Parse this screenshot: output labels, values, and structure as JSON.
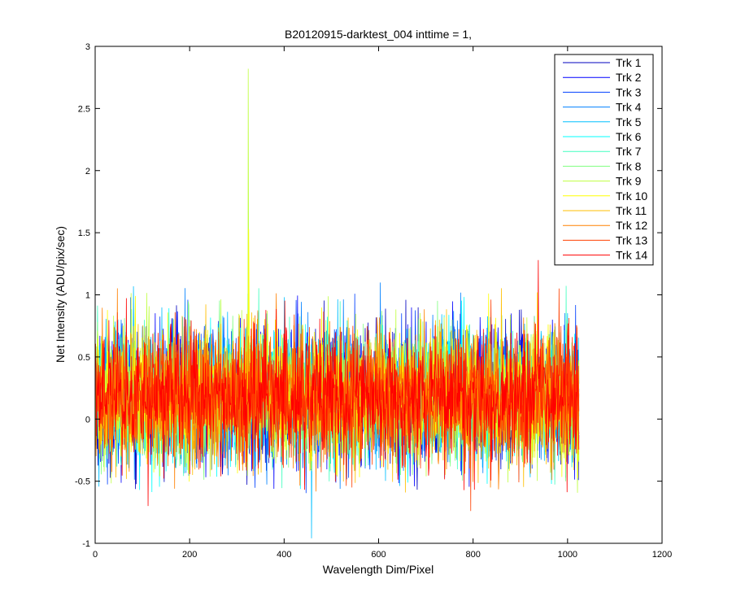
{
  "chart_data": {
    "type": "line",
    "title": "B20120915-darktest_004 inttime = 1,",
    "xlabel": "Wavelength Dim/Pixel",
    "ylabel": "Net Intensity (ADU/pix/sec)",
    "xlim": [
      0,
      1200
    ],
    "ylim": [
      -1,
      3
    ],
    "xticks": [
      0,
      200,
      400,
      600,
      800,
      1000,
      1200
    ],
    "yticks": [
      -1,
      -0.5,
      0,
      0.5,
      1,
      1.5,
      2,
      2.5,
      3
    ],
    "xtick_labels": [
      "0",
      "200",
      "400",
      "600",
      "800",
      "1000",
      "1200"
    ],
    "ytick_labels": [
      "-1",
      "-0.5",
      "0",
      "0.5",
      "1",
      "1.5",
      "2",
      "2.5",
      "3"
    ],
    "grid": false,
    "legend_position": "top-right",
    "x_range_data": [
      0,
      1024
    ],
    "n_points_per_series": 1024,
    "noise_model": {
      "mean": 0.18,
      "typical_min": -0.45,
      "typical_max": 0.8
    },
    "series": [
      {
        "name": "Trk 1",
        "color": "#0000bf"
      },
      {
        "name": "Trk 2",
        "color": "#0000ff"
      },
      {
        "name": "Trk 3",
        "color": "#0040ff"
      },
      {
        "name": "Trk 4",
        "color": "#0080ff"
      },
      {
        "name": "Trk 5",
        "color": "#00bfff"
      },
      {
        "name": "Trk 6",
        "color": "#00ffff"
      },
      {
        "name": "Trk 7",
        "color": "#40ffbf"
      },
      {
        "name": "Trk 8",
        "color": "#80ff80"
      },
      {
        "name": "Trk 9",
        "color": "#bfff40"
      },
      {
        "name": "Trk 10",
        "color": "#ffff00"
      },
      {
        "name": "Trk 11",
        "color": "#ffbf00"
      },
      {
        "name": "Trk 12",
        "color": "#ff8000"
      },
      {
        "name": "Trk 13",
        "color": "#ff4000"
      },
      {
        "name": "Trk 14",
        "color": "#ff0000"
      }
    ],
    "notable_points": [
      {
        "series": "Trk 9",
        "x": 324,
        "y": 2.82
      },
      {
        "series": "Trk 10",
        "x": 325,
        "y": 1.53
      },
      {
        "series": "Trk 5",
        "x": 458,
        "y": -0.96
      },
      {
        "series": "Trk 14",
        "x": 938,
        "y": 1.28
      },
      {
        "series": "Trk 13",
        "x": 795,
        "y": -0.74
      },
      {
        "series": "Trk 14",
        "x": 112,
        "y": -0.7
      }
    ]
  }
}
